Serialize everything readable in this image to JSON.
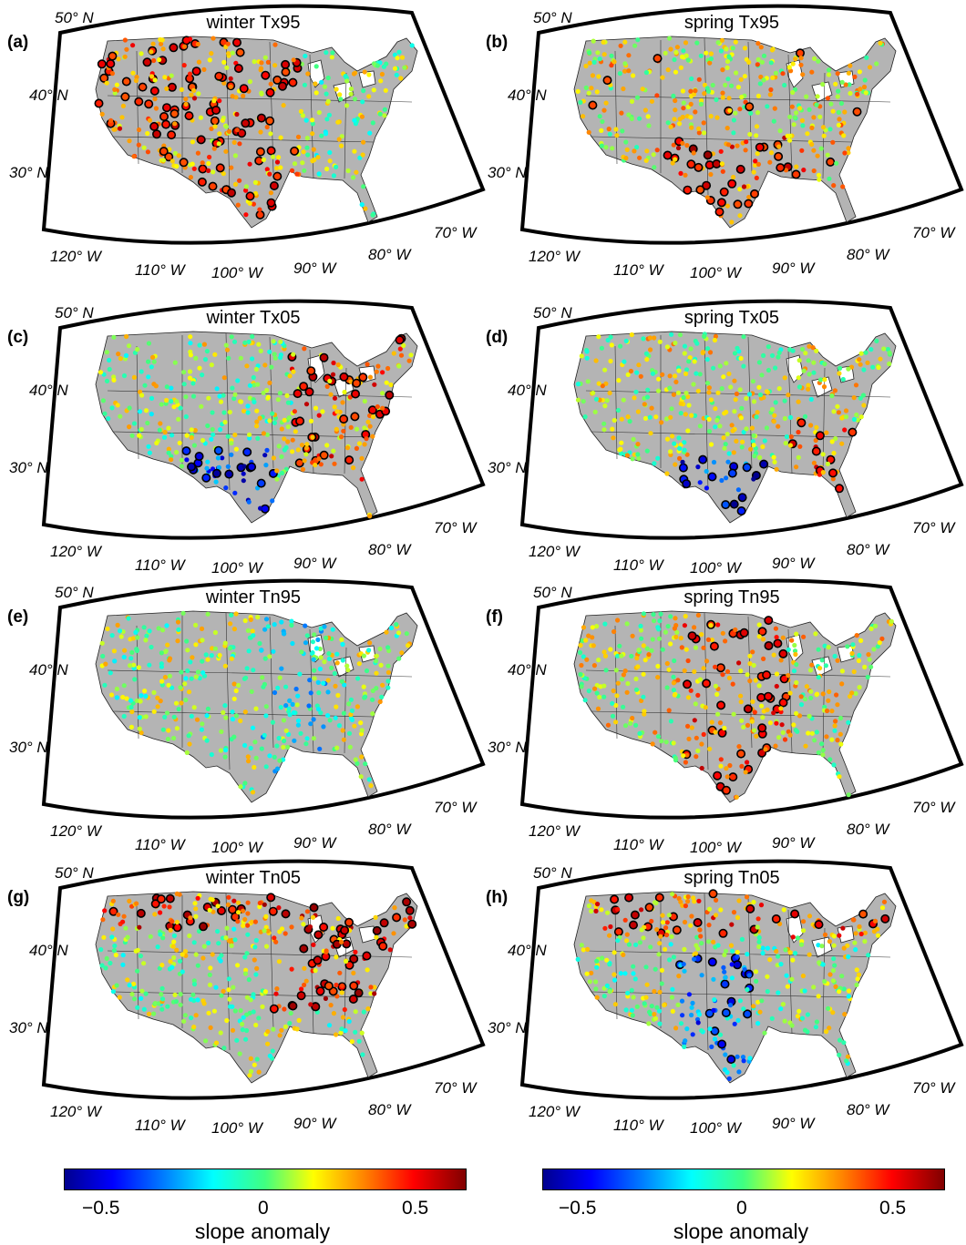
{
  "panels": [
    {
      "label": "(a)",
      "title": "winter Tx95",
      "mode": "warmwest"
    },
    {
      "label": "(b)",
      "title": "spring Tx95",
      "mode": "warmsouth"
    },
    {
      "label": "(c)",
      "title": "winter Tx05",
      "mode": "warmeast"
    },
    {
      "label": "(d)",
      "title": "spring Tx05",
      "mode": "mixed"
    },
    {
      "label": "(e)",
      "title": "winter Tn95",
      "mode": "cool"
    },
    {
      "label": "(f)",
      "title": "spring Tn95",
      "mode": "warmcentral"
    },
    {
      "label": "(g)",
      "title": "winter Tn05",
      "mode": "warmnortheast"
    },
    {
      "label": "(h)",
      "title": "spring Tn05",
      "mode": "mixednorth"
    }
  ],
  "latitude_labels": [
    "50° N",
    "40° N",
    "30° N"
  ],
  "longitude_labels": [
    "120° W",
    "110° W",
    "100° W",
    "90° W",
    "80° W",
    "70° W"
  ],
  "colorbars": [
    {
      "ticks": [
        "−0.5",
        "0",
        "0.5"
      ],
      "label": "slope anomaly",
      "range": [
        -0.6,
        0.6
      ]
    },
    {
      "ticks": [
        "−0.5",
        "0",
        "0.5"
      ],
      "label": "slope anomaly",
      "range": [
        -0.6,
        0.6
      ]
    }
  ],
  "colors": {
    "land": "#b4b4b4",
    "frame": "#000000"
  }
}
